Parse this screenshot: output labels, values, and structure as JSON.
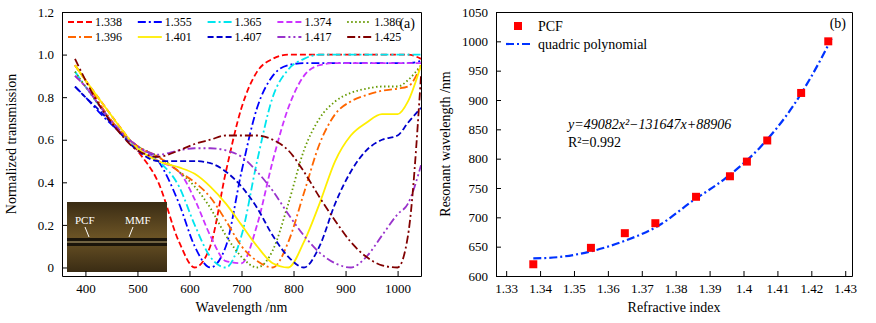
{
  "chart_data": [
    {
      "type": "line",
      "panel_label": "(a)",
      "x_label": "Wavelength /nm",
      "y_label": "Normalized transmission",
      "xlim": [
        355,
        1045
      ],
      "xticks": [
        400,
        500,
        600,
        700,
        800,
        900,
        1000
      ],
      "ylim": [
        -0.04,
        1.2
      ],
      "yticks": [
        0,
        0.2,
        0.4,
        0.6,
        0.8,
        {
          "value": 1,
          "label": "1.0"
        },
        1.2
      ],
      "legend": "top",
      "inset_labels": [
        "PCF",
        "MMF"
      ],
      "x": [
        380,
        400,
        430,
        460,
        500,
        540,
        580,
        610,
        640,
        670,
        700,
        730,
        760,
        790,
        820,
        850,
        880,
        910,
        940,
        970,
        1000,
        1020,
        1045
      ],
      "series": [
        {
          "name": "1.338",
          "color": "#ff0000",
          "line_style": "dashed",
          "values": [
            0.95,
            0.88,
            0.78,
            0.68,
            0.55,
            0.4,
            0.12,
            0.0,
            0.1,
            0.45,
            0.75,
            0.92,
            0.98,
            1.0,
            1.0,
            1.0,
            1.0,
            1.0,
            1.0,
            1.0,
            1.0,
            1.0,
            0.98
          ]
        },
        {
          "name": "1.355",
          "color": "#0000ff",
          "line_style": "dashdot",
          "values": [
            0.85,
            0.8,
            0.72,
            0.65,
            0.57,
            0.5,
            0.3,
            0.1,
            0.0,
            0.1,
            0.45,
            0.75,
            0.9,
            0.95,
            0.96,
            0.96,
            0.96,
            0.96,
            0.96,
            0.96,
            0.96,
            0.96,
            0.97
          ]
        },
        {
          "name": "1.365",
          "color": "#00e5ee",
          "line_style": "dashdot",
          "values": [
            0.92,
            0.85,
            0.75,
            0.66,
            0.56,
            0.5,
            0.38,
            0.2,
            0.05,
            0.0,
            0.15,
            0.5,
            0.8,
            0.93,
            0.98,
            1.0,
            1.0,
            1.0,
            1.0,
            1.0,
            1.0,
            1.0,
            1.0
          ]
        },
        {
          "name": "1.374",
          "color": "#cc33ff",
          "line_style": "dashed",
          "values": [
            0.9,
            0.85,
            0.75,
            0.65,
            0.57,
            0.5,
            0.45,
            0.32,
            0.15,
            0.03,
            0.02,
            0.2,
            0.5,
            0.75,
            0.9,
            0.95,
            0.96,
            0.96,
            0.96,
            0.96,
            0.96,
            0.96,
            0.96
          ]
        },
        {
          "name": "1.386",
          "color": "#669900",
          "line_style": "dotted",
          "values": [
            0.92,
            0.85,
            0.75,
            0.65,
            0.57,
            0.52,
            0.45,
            0.38,
            0.28,
            0.15,
            0.05,
            0.0,
            0.08,
            0.3,
            0.55,
            0.7,
            0.78,
            0.82,
            0.84,
            0.85,
            0.85,
            0.88,
            0.95
          ]
        },
        {
          "name": "1.396",
          "color": "#ff6600",
          "line_style": "dashdot",
          "values": [
            0.95,
            0.88,
            0.76,
            0.66,
            0.57,
            0.52,
            0.45,
            0.4,
            0.33,
            0.22,
            0.1,
            0.03,
            0.0,
            0.12,
            0.35,
            0.58,
            0.72,
            0.78,
            0.81,
            0.83,
            0.84,
            0.85,
            0.95
          ]
        },
        {
          "name": "1.401",
          "color": "#ffee00",
          "line_style": "solid",
          "values": [
            0.95,
            0.88,
            0.78,
            0.68,
            0.56,
            0.5,
            0.47,
            0.44,
            0.38,
            0.3,
            0.2,
            0.1,
            0.02,
            0.0,
            0.12,
            0.3,
            0.5,
            0.62,
            0.68,
            0.72,
            0.72,
            0.78,
            0.95
          ]
        },
        {
          "name": "1.407",
          "color": "#0000cc",
          "line_style": "dashed",
          "values": [
            0.85,
            0.8,
            0.73,
            0.65,
            0.55,
            0.5,
            0.5,
            0.5,
            0.49,
            0.45,
            0.38,
            0.28,
            0.15,
            0.05,
            0.0,
            0.1,
            0.3,
            0.45,
            0.55,
            0.6,
            0.62,
            0.68,
            0.75
          ]
        },
        {
          "name": "1.417",
          "color": "#9933cc",
          "line_style": "dashdotdot",
          "values": [
            0.9,
            0.85,
            0.75,
            0.66,
            0.57,
            0.53,
            0.55,
            0.56,
            0.56,
            0.55,
            0.52,
            0.45,
            0.36,
            0.25,
            0.15,
            0.07,
            0.02,
            0.0,
            0.05,
            0.15,
            0.25,
            0.3,
            0.48
          ]
        },
        {
          "name": "1.425",
          "color": "#800000",
          "line_style": "dashdot",
          "values": [
            0.98,
            0.88,
            0.75,
            0.65,
            0.55,
            0.52,
            0.55,
            0.58,
            0.6,
            0.62,
            0.62,
            0.62,
            0.6,
            0.55,
            0.45,
            0.33,
            0.22,
            0.12,
            0.05,
            0.01,
            0.0,
            0.15,
            0.9
          ]
        }
      ]
    },
    {
      "type": "scatter",
      "panel_label": "(b)",
      "x_label": "Refractive index",
      "y_label": "Resonant wavelength /nm",
      "xlim": [
        1.327,
        1.432
      ],
      "xticks": [
        1.33,
        1.34,
        1.35,
        1.36,
        1.37,
        1.38,
        1.39,
        1.4,
        1.41,
        1.42,
        1.43
      ],
      "ylim": [
        600,
        1050
      ],
      "yticks": [
        600,
        650,
        700,
        750,
        800,
        850,
        900,
        950,
        1000,
        1050
      ],
      "legend": "upper left",
      "annotations": [
        "y=49082x²−131647x+88906",
        "R²=0.992"
      ],
      "series": [
        {
          "name": "PCF",
          "type": "scatter",
          "marker": "square",
          "color": "#ff0000",
          "x": [
            1.338,
            1.355,
            1.365,
            1.374,
            1.386,
            1.396,
            1.401,
            1.407,
            1.417,
            1.425
          ],
          "values": [
            620,
            648,
            673,
            690,
            735,
            770,
            795,
            831,
            912,
            1000
          ]
        },
        {
          "name": "quadric polynomial",
          "type": "line",
          "line_style": "dashdot",
          "color": "#0033ff",
          "x": [
            1.338,
            1.345,
            1.355,
            1.365,
            1.375,
            1.385,
            1.395,
            1.405,
            1.415,
            1.42,
            1.426
          ],
          "values": [
            630,
            632,
            642,
            660,
            686,
            728,
            768,
            820,
            893,
            940,
            1005
          ]
        }
      ]
    }
  ]
}
